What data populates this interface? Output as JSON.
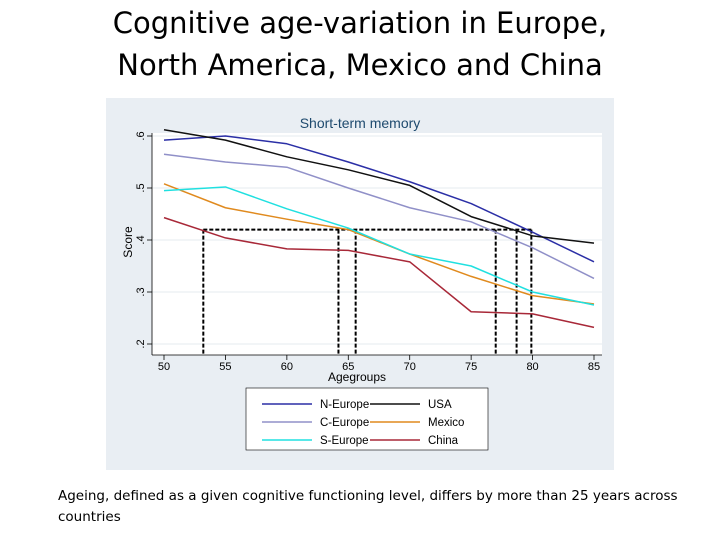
{
  "slide": {
    "title_line1": "Cognitive age-variation in Europe,",
    "title_line2": "North America, Mexico and China",
    "caption": "Ageing, defined as a given cognitive functioning level, differs by more than 25 years across countries"
  },
  "chart_data": {
    "type": "line",
    "title": "Short-term memory",
    "xlabel": "Agegroups",
    "ylabel": "Score",
    "x": [
      50,
      55,
      60,
      65,
      70,
      75,
      80,
      85
    ],
    "xlim": [
      50,
      85
    ],
    "ylim": [
      0.2,
      0.6
    ],
    "xticks": [
      "50",
      "55",
      "60",
      "65",
      "70",
      "75",
      "80",
      "85"
    ],
    "yticks": [
      {
        "value": 0.2,
        "label": ".2"
      },
      {
        "value": 0.3,
        "label": ".3"
      },
      {
        "value": 0.4,
        "label": ".4"
      },
      {
        "value": 0.5,
        "label": ".5"
      },
      {
        "value": 0.6,
        "label": ".6"
      }
    ],
    "grid": true,
    "legend_position": "bottom",
    "background": "#e9eef3",
    "series": [
      {
        "name": "N-Europe",
        "color": "#2b2fa6",
        "values": [
          0.592,
          0.6,
          0.585,
          0.55,
          0.512,
          0.47,
          0.415,
          0.358
        ]
      },
      {
        "name": "USA",
        "color": "#111111",
        "values": [
          0.612,
          0.592,
          0.56,
          0.535,
          0.505,
          0.445,
          0.408,
          0.394
        ]
      },
      {
        "name": "C-Europe",
        "color": "#9090c8",
        "values": [
          0.565,
          0.55,
          0.54,
          0.5,
          0.462,
          0.435,
          0.385,
          0.326
        ]
      },
      {
        "name": "Mexico",
        "color": "#e08a1e",
        "values": [
          0.508,
          0.462,
          0.44,
          0.42,
          0.373,
          0.33,
          0.293,
          0.277
        ]
      },
      {
        "name": "S-Europe",
        "color": "#20e0e0",
        "values": [
          0.495,
          0.502,
          0.46,
          0.423,
          0.373,
          0.35,
          0.3,
          0.275
        ]
      },
      {
        "name": "China",
        "color": "#a82838",
        "values": [
          0.443,
          0.404,
          0.383,
          0.38,
          0.358,
          0.262,
          0.258,
          0.232
        ]
      }
    ],
    "reference_level": 0.42,
    "reference_ages": [
      53.2,
      64.2,
      65.6,
      77.0,
      78.7,
      79.9
    ]
  }
}
